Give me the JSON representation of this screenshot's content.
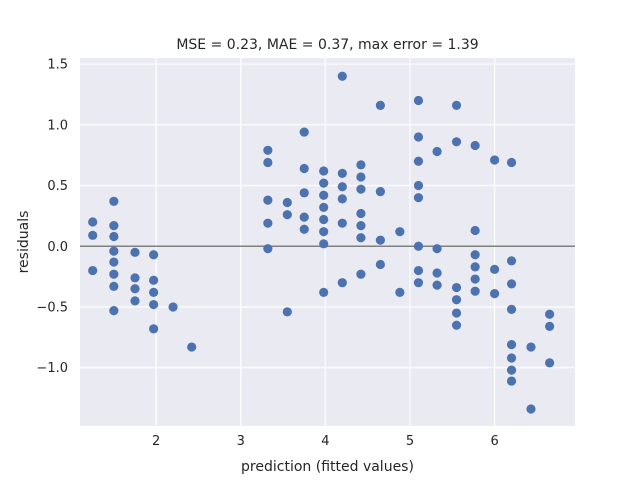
{
  "chart_data": {
    "type": "scatter",
    "title": "MSE = 0.23, MAE = 0.37, max error = 1.39",
    "xlabel": "prediction (fitted values)",
    "ylabel": "residuals",
    "xlim": [
      1.1,
      6.95
    ],
    "ylim": [
      -1.48,
      1.55
    ],
    "xticks": [
      2,
      3,
      4,
      5,
      6
    ],
    "yticks": [
      1.5,
      1.0,
      0.5,
      0.0,
      -0.5,
      -1.0
    ],
    "ytick_labels": [
      "1.5",
      "1.0",
      "0.5",
      "0.0",
      "−0.5",
      "−1.0"
    ],
    "reference_line_y": 0,
    "grid": true,
    "colors": {
      "background": "#eaeaf2",
      "point": "#4c72b0",
      "grid": "#ffffff",
      "ref_line": "#808080"
    },
    "points": [
      [
        1.25,
        0.2
      ],
      [
        1.25,
        0.09
      ],
      [
        1.25,
        -0.2
      ],
      [
        1.5,
        0.37
      ],
      [
        1.5,
        0.17
      ],
      [
        1.5,
        0.08
      ],
      [
        1.5,
        -0.04
      ],
      [
        1.5,
        -0.13
      ],
      [
        1.5,
        -0.23
      ],
      [
        1.5,
        -0.33
      ],
      [
        1.5,
        -0.53
      ],
      [
        1.75,
        -0.05
      ],
      [
        1.75,
        -0.26
      ],
      [
        1.75,
        -0.35
      ],
      [
        1.75,
        -0.45
      ],
      [
        1.97,
        -0.07
      ],
      [
        1.97,
        -0.28
      ],
      [
        1.97,
        -0.38
      ],
      [
        1.97,
        -0.48
      ],
      [
        1.97,
        -0.68
      ],
      [
        2.2,
        -0.5
      ],
      [
        2.42,
        -0.83
      ],
      [
        3.32,
        0.79
      ],
      [
        3.32,
        0.69
      ],
      [
        3.32,
        0.38
      ],
      [
        3.32,
        0.19
      ],
      [
        3.32,
        -0.02
      ],
      [
        3.55,
        0.36
      ],
      [
        3.55,
        0.26
      ],
      [
        3.55,
        -0.54
      ],
      [
        3.75,
        0.94
      ],
      [
        3.75,
        0.64
      ],
      [
        3.75,
        0.44
      ],
      [
        3.75,
        0.24
      ],
      [
        3.75,
        0.14
      ],
      [
        3.98,
        0.62
      ],
      [
        3.98,
        0.52
      ],
      [
        3.98,
        0.42
      ],
      [
        3.98,
        0.32
      ],
      [
        3.98,
        0.22
      ],
      [
        3.98,
        0.12
      ],
      [
        3.98,
        0.02
      ],
      [
        3.98,
        -0.38
      ],
      [
        4.2,
        1.4
      ],
      [
        4.2,
        0.6
      ],
      [
        4.2,
        0.49
      ],
      [
        4.2,
        0.39
      ],
      [
        4.2,
        0.19
      ],
      [
        4.2,
        -0.3
      ],
      [
        4.42,
        0.67
      ],
      [
        4.42,
        0.57
      ],
      [
        4.42,
        0.47
      ],
      [
        4.42,
        0.27
      ],
      [
        4.42,
        0.17
      ],
      [
        4.42,
        0.07
      ],
      [
        4.42,
        -0.23
      ],
      [
        4.65,
        1.16
      ],
      [
        4.65,
        0.45
      ],
      [
        4.65,
        0.05
      ],
      [
        4.65,
        -0.15
      ],
      [
        4.88,
        0.12
      ],
      [
        4.88,
        -0.38
      ],
      [
        5.1,
        1.2
      ],
      [
        5.1,
        0.9
      ],
      [
        5.1,
        0.7
      ],
      [
        5.1,
        0.5
      ],
      [
        5.1,
        0.4
      ],
      [
        5.1,
        0.0
      ],
      [
        5.1,
        -0.2
      ],
      [
        5.1,
        -0.3
      ],
      [
        5.32,
        0.78
      ],
      [
        5.32,
        -0.02
      ],
      [
        5.32,
        -0.22
      ],
      [
        5.32,
        -0.32
      ],
      [
        5.55,
        1.16
      ],
      [
        5.55,
        0.86
      ],
      [
        5.55,
        -0.34
      ],
      [
        5.55,
        -0.44
      ],
      [
        5.55,
        -0.55
      ],
      [
        5.55,
        -0.65
      ],
      [
        5.77,
        0.83
      ],
      [
        5.77,
        0.13
      ],
      [
        5.77,
        -0.07
      ],
      [
        5.77,
        -0.17
      ],
      [
        5.77,
        -0.27
      ],
      [
        5.77,
        -0.37
      ],
      [
        6.0,
        0.71
      ],
      [
        6.0,
        -0.19
      ],
      [
        6.0,
        -0.39
      ],
      [
        6.2,
        0.69
      ],
      [
        6.2,
        -0.12
      ],
      [
        6.2,
        -0.31
      ],
      [
        6.2,
        -0.52
      ],
      [
        6.2,
        -0.81
      ],
      [
        6.2,
        -0.92
      ],
      [
        6.2,
        -1.02
      ],
      [
        6.2,
        -1.11
      ],
      [
        6.43,
        -0.83
      ],
      [
        6.43,
        -1.34
      ],
      [
        6.65,
        -0.56
      ],
      [
        6.65,
        -0.66
      ],
      [
        6.65,
        -0.96
      ]
    ]
  }
}
